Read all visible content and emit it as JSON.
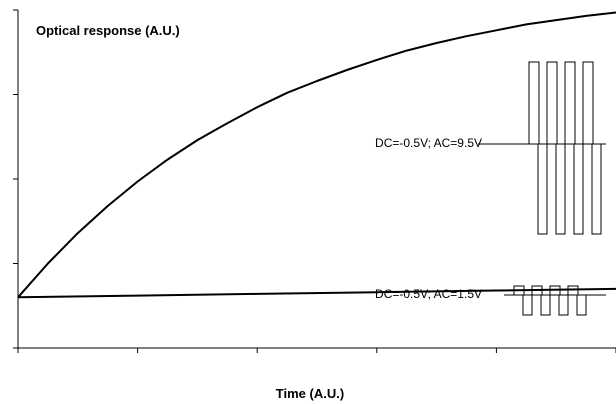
{
  "chart_data": {
    "type": "line",
    "title": "",
    "ylabel": "Optical response (A.U.)",
    "xlabel": "Time (A.U.)",
    "xlim": [
      0,
      10
    ],
    "ylim": [
      0,
      4
    ],
    "x_ticks": [
      0,
      2,
      4,
      6,
      8,
      10
    ],
    "y_ticks": [
      0,
      1,
      2,
      3,
      4
    ],
    "tick_labels_shown": false,
    "grid": false,
    "legend": "none",
    "series": [
      {
        "x": [
          0,
          0.5,
          1,
          1.5,
          2,
          2.5,
          3,
          3.5,
          4,
          4.5,
          5,
          5.5,
          6,
          6.5,
          7,
          7.5,
          8,
          8.5,
          9,
          9.5,
          10
        ],
        "values": [
          0.6,
          1.0,
          1.36,
          1.68,
          1.97,
          2.23,
          2.46,
          2.66,
          2.85,
          3.02,
          3.16,
          3.29,
          3.41,
          3.52,
          3.61,
          3.69,
          3.76,
          3.83,
          3.88,
          3.93,
          3.97
        ],
        "color": "#000000"
      },
      {
        "x": [
          0,
          2,
          4,
          6,
          8,
          10
        ],
        "values": [
          0.6,
          0.62,
          0.64,
          0.66,
          0.68,
          0.7
        ],
        "color": "#000000"
      }
    ],
    "annotations": [
      {
        "text": "DC=-0.5V; AC=9.5V",
        "near": "upper curve, right side"
      },
      {
        "text": "DC=-0.5V; AC=1.5V",
        "near": "lower curve, right side"
      }
    ],
    "waveforms": [
      {
        "label": "DC=-0.5V; AC=9.5V",
        "cycles": 4,
        "shape": "square",
        "amplitude": "large"
      },
      {
        "label": "DC=-0.5V; AC=1.5V",
        "cycles": 4,
        "shape": "square",
        "amplitude": "small"
      }
    ]
  }
}
